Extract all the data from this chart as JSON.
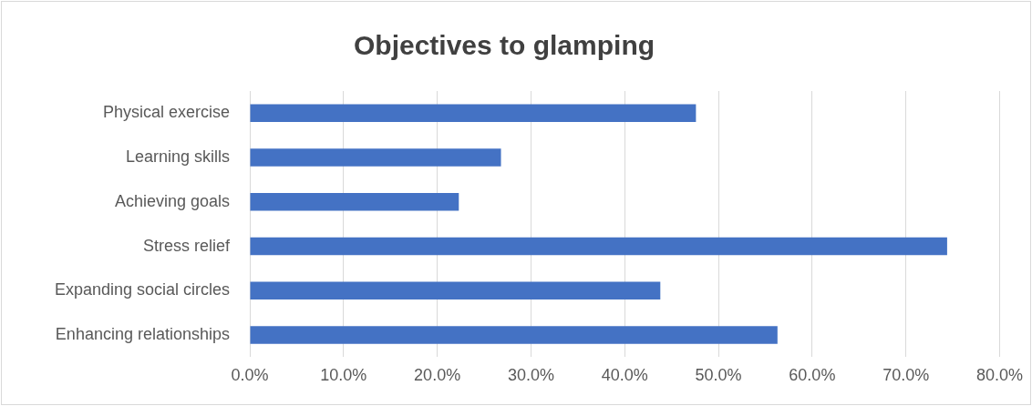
{
  "chart_data": {
    "type": "bar",
    "orientation": "horizontal",
    "title": "Objectives to glamping",
    "categories": [
      "Physical exercise",
      "Learning skills",
      "Achieving goals",
      "Stress relief",
      "Expanding social circles",
      "Enhancing relationships"
    ],
    "values": [
      47.6,
      26.8,
      22.3,
      74.4,
      43.8,
      56.3
    ],
    "color": "#4472c4",
    "xlim": [
      0,
      80
    ],
    "xticks": [
      {
        "value": 0,
        "label": "0.0%"
      },
      {
        "value": 10,
        "label": "10.0%"
      },
      {
        "value": 20,
        "label": "20.0%"
      },
      {
        "value": 30,
        "label": "30.0%"
      },
      {
        "value": 40,
        "label": "40.0%"
      },
      {
        "value": 50,
        "label": "50.0%"
      },
      {
        "value": 60,
        "label": "60.0%"
      },
      {
        "value": 70,
        "label": "70.0%"
      },
      {
        "value": 80,
        "label": "80.0%"
      }
    ],
    "grid": "x",
    "legend": false
  }
}
